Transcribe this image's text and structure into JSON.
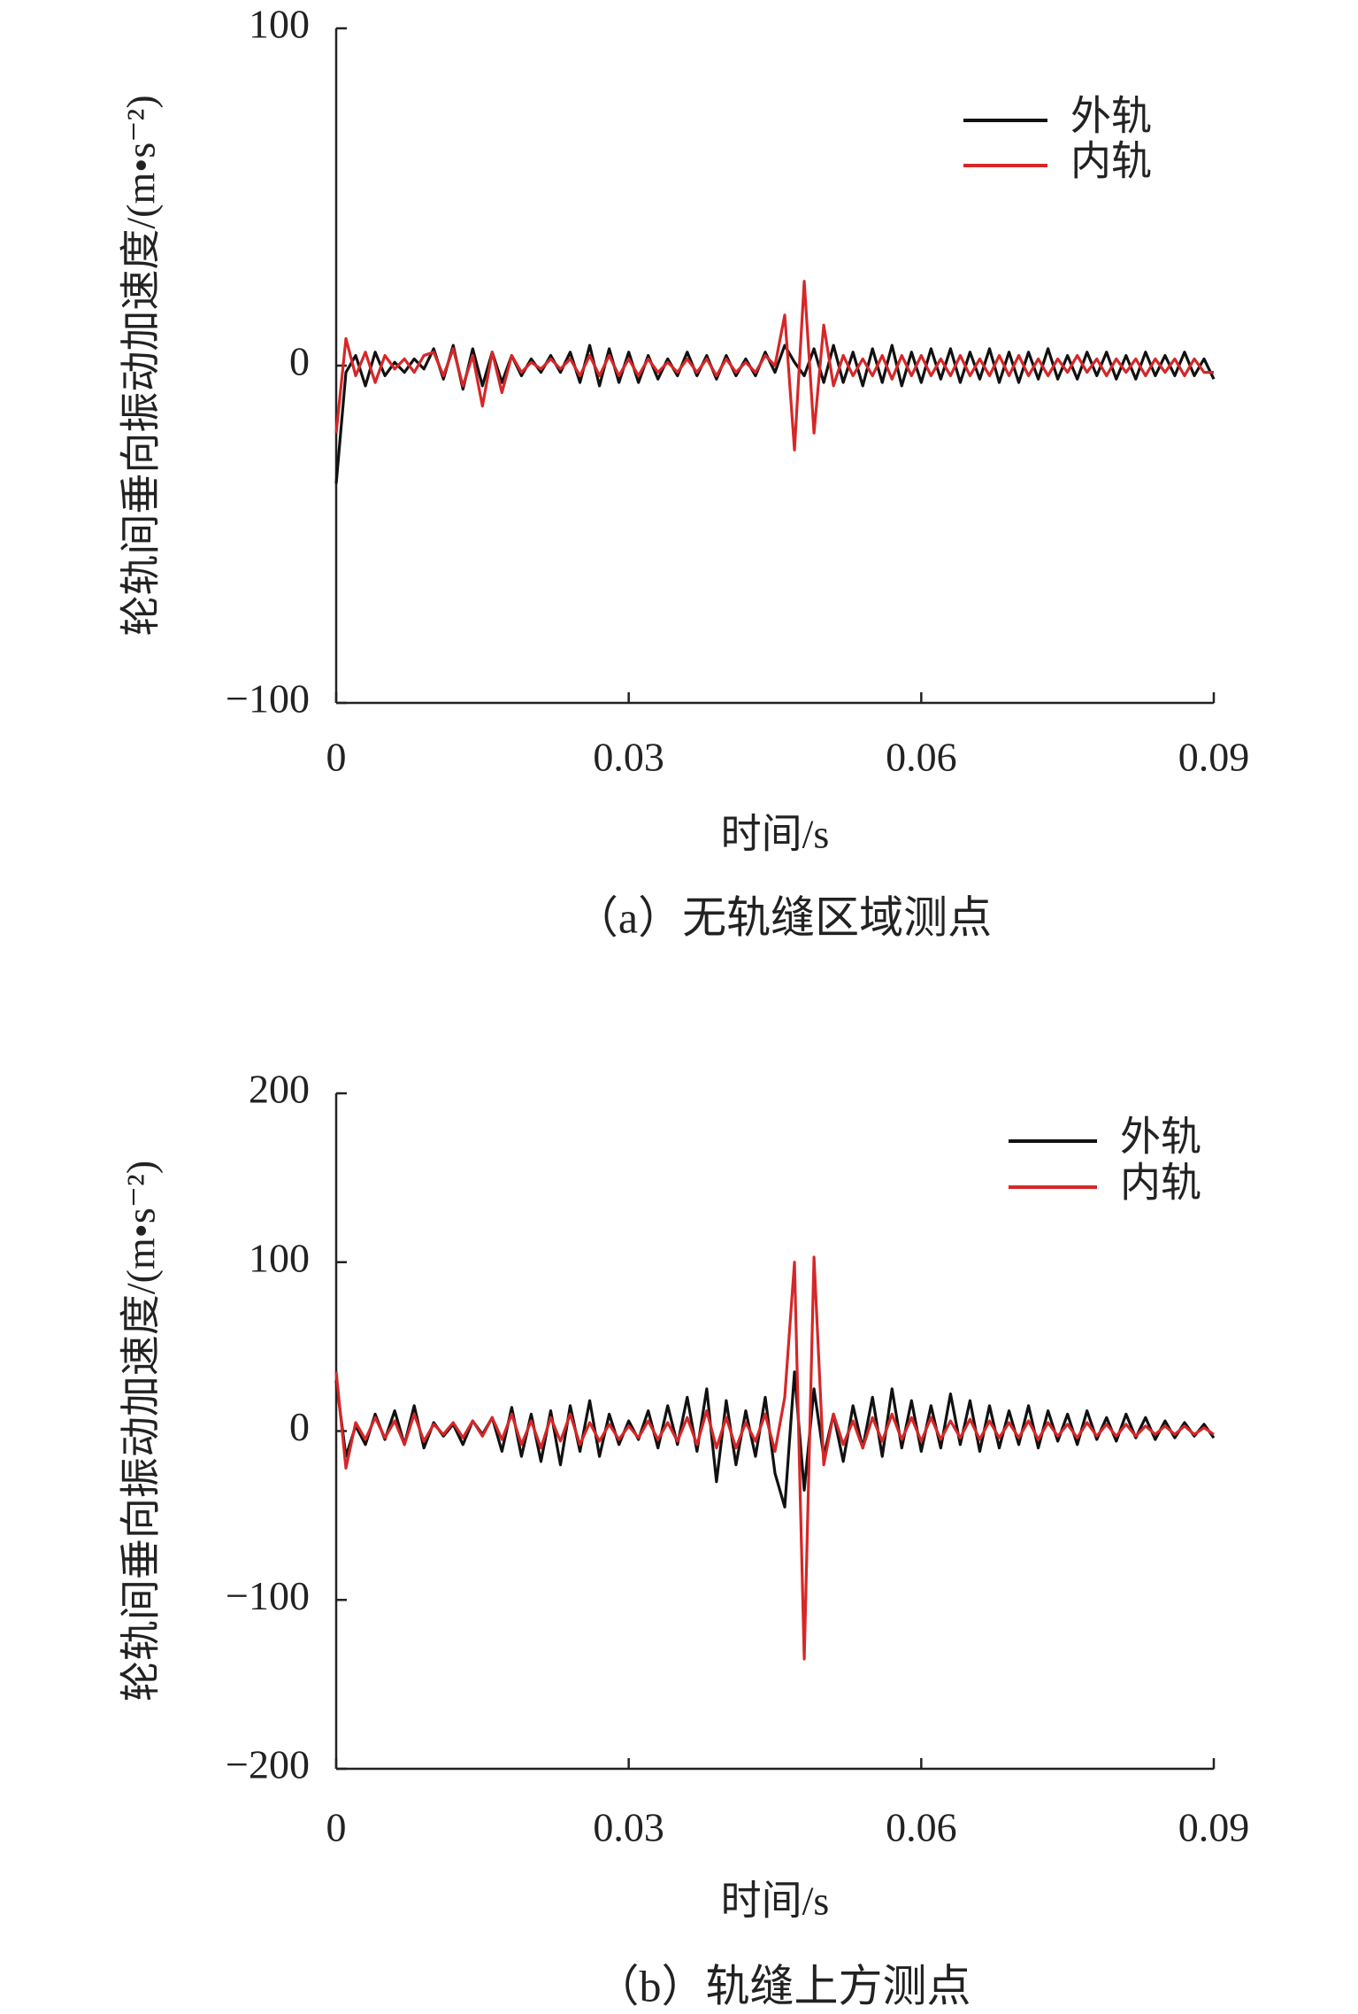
{
  "chart_data": [
    {
      "type": "line",
      "ylabel": "轮轨间垂向振动加速度/(m•s⁻²)",
      "xlabel": "时间/s",
      "caption": "（a）无轨缝区域测点",
      "xlim": [
        0,
        0.09
      ],
      "xticks": [
        0,
        0.03,
        0.06,
        0.09
      ],
      "ylim": [
        -100,
        100
      ],
      "yticks": [
        {
          "value": -100,
          "label": "−100"
        },
        0,
        100
      ],
      "legend": "upper right",
      "grid": false,
      "x": [
        0,
        0.001,
        0.002,
        0.003,
        0.004,
        0.005,
        0.006,
        0.007,
        0.008,
        0.009,
        0.01,
        0.011,
        0.012,
        0.013,
        0.014,
        0.015,
        0.016,
        0.017,
        0.018,
        0.019,
        0.02,
        0.021,
        0.022,
        0.023,
        0.024,
        0.025,
        0.026,
        0.027,
        0.028,
        0.029,
        0.03,
        0.031,
        0.032,
        0.033,
        0.034,
        0.035,
        0.036,
        0.037,
        0.038,
        0.039,
        0.04,
        0.041,
        0.042,
        0.043,
        0.044,
        0.045,
        0.046,
        0.047,
        0.048,
        0.049,
        0.05,
        0.051,
        0.052,
        0.053,
        0.054,
        0.055,
        0.056,
        0.057,
        0.058,
        0.059,
        0.06,
        0.061,
        0.062,
        0.063,
        0.064,
        0.065,
        0.066,
        0.067,
        0.068,
        0.069,
        0.07,
        0.071,
        0.072,
        0.073,
        0.074,
        0.075,
        0.076,
        0.077,
        0.078,
        0.079,
        0.08,
        0.081,
        0.082,
        0.083,
        0.084,
        0.085,
        0.086,
        0.087,
        0.088,
        0.089,
        0.09
      ],
      "series": [
        {
          "name": "外轨",
          "color": "#111111",
          "values": [
            -35,
            -2,
            3,
            -6,
            4,
            -3,
            1,
            -2,
            2,
            -1,
            5,
            -4,
            6,
            -7,
            5,
            -6,
            4,
            -5,
            3,
            -3,
            2,
            -2,
            3,
            -2,
            4,
            -5,
            6,
            -6,
            5,
            -5,
            4,
            -5,
            3,
            -4,
            2,
            -3,
            4,
            -3,
            3,
            -4,
            3,
            -3,
            2,
            -3,
            4,
            -2,
            6,
            1,
            -3,
            5,
            -5,
            6,
            -5,
            4,
            -6,
            5,
            -5,
            6,
            -6,
            4,
            -5,
            5,
            -4,
            5,
            -5,
            4,
            -4,
            5,
            -5,
            4,
            -5,
            4,
            -4,
            5,
            -4,
            3,
            -4,
            4,
            -3,
            4,
            -4,
            3,
            -4,
            4,
            -3,
            3,
            -3,
            4,
            -3,
            2,
            -4
          ]
        },
        {
          "name": "内轨",
          "color": "#d62728",
          "values": [
            -20,
            8,
            -3,
            4,
            -5,
            3,
            -1,
            2,
            -2,
            3,
            4,
            -3,
            5,
            -6,
            3,
            -12,
            4,
            -8,
            3,
            -2,
            1,
            -1,
            2,
            -1,
            2,
            -3,
            3,
            -3,
            3,
            -3,
            2,
            -3,
            2,
            -2,
            1,
            -2,
            2,
            -2,
            2,
            -3,
            2,
            -2,
            1,
            -2,
            3,
            0,
            15,
            -25,
            25,
            -20,
            12,
            -6,
            3,
            -3,
            2,
            -3,
            3,
            -4,
            3,
            -3,
            3,
            -3,
            2,
            -3,
            3,
            -3,
            2,
            -3,
            3,
            -3,
            3,
            -3,
            2,
            -3,
            2,
            -2,
            3,
            -2,
            2,
            -3,
            2,
            -2,
            2,
            -3,
            2,
            -2,
            2,
            -3,
            2,
            -2,
            -2
          ]
        }
      ]
    },
    {
      "type": "line",
      "ylabel": "轮轨间垂向振动加速度/(m•s⁻²)",
      "xlabel": "时间/s",
      "caption": "（b）轨缝上方测点",
      "xlim": [
        0,
        0.09
      ],
      "xticks": [
        0,
        0.03,
        0.06,
        0.09
      ],
      "ylim": [
        -200,
        200
      ],
      "yticks": [
        {
          "value": -200,
          "label": "−200"
        },
        {
          "value": -100,
          "label": "−100"
        },
        0,
        100,
        200
      ],
      "legend": "upper right",
      "grid": false,
      "x": [
        0,
        0.001,
        0.002,
        0.003,
        0.004,
        0.005,
        0.006,
        0.007,
        0.008,
        0.009,
        0.01,
        0.011,
        0.012,
        0.013,
        0.014,
        0.015,
        0.016,
        0.017,
        0.018,
        0.019,
        0.02,
        0.021,
        0.022,
        0.023,
        0.024,
        0.025,
        0.026,
        0.027,
        0.028,
        0.029,
        0.03,
        0.031,
        0.032,
        0.033,
        0.034,
        0.035,
        0.036,
        0.037,
        0.038,
        0.039,
        0.04,
        0.041,
        0.042,
        0.043,
        0.044,
        0.045,
        0.046,
        0.047,
        0.048,
        0.049,
        0.05,
        0.051,
        0.052,
        0.053,
        0.054,
        0.055,
        0.056,
        0.057,
        0.058,
        0.059,
        0.06,
        0.061,
        0.062,
        0.063,
        0.064,
        0.065,
        0.066,
        0.067,
        0.068,
        0.069,
        0.07,
        0.071,
        0.072,
        0.073,
        0.074,
        0.075,
        0.076,
        0.077,
        0.078,
        0.079,
        0.08,
        0.081,
        0.082,
        0.083,
        0.084,
        0.085,
        0.086,
        0.087,
        0.088,
        0.089,
        0.09
      ],
      "series": [
        {
          "name": "外轨",
          "color": "#111111",
          "values": [
            30,
            -15,
            3,
            -8,
            10,
            -5,
            12,
            -8,
            15,
            -10,
            5,
            -3,
            4,
            -8,
            6,
            -2,
            8,
            -12,
            14,
            -15,
            10,
            -18,
            12,
            -20,
            15,
            -12,
            18,
            -15,
            10,
            -8,
            6,
            -5,
            12,
            -10,
            15,
            -8,
            20,
            -12,
            25,
            -30,
            18,
            -20,
            12,
            -15,
            20,
            -25,
            -45,
            35,
            -35,
            25,
            -15,
            10,
            -18,
            15,
            -10,
            20,
            -15,
            25,
            -10,
            18,
            -12,
            15,
            -10,
            22,
            -8,
            18,
            -12,
            15,
            -10,
            12,
            -8,
            15,
            -10,
            12,
            -6,
            10,
            -8,
            12,
            -5,
            8,
            -6,
            10,
            -4,
            8,
            -5,
            6,
            -4,
            5,
            -3,
            4,
            -4
          ]
        },
        {
          "name": "内轨",
          "color": "#d62728",
          "values": [
            35,
            -22,
            5,
            -5,
            8,
            -4,
            6,
            -8,
            10,
            -6,
            4,
            -2,
            5,
            -4,
            6,
            -3,
            8,
            -5,
            10,
            -8,
            6,
            -10,
            8,
            -6,
            10,
            -8,
            5,
            -6,
            4,
            -5,
            3,
            -4,
            6,
            -5,
            5,
            -6,
            8,
            -8,
            12,
            -10,
            8,
            -10,
            5,
            -6,
            10,
            -12,
            20,
            100,
            -135,
            103,
            -20,
            10,
            -8,
            6,
            -10,
            8,
            -6,
            10,
            -5,
            8,
            -6,
            8,
            -5,
            6,
            -4,
            7,
            -5,
            6,
            -4,
            5,
            -4,
            6,
            -5,
            5,
            -3,
            4,
            -4,
            5,
            -3,
            4,
            -3,
            4,
            -3,
            3,
            -2,
            3,
            -2,
            3,
            -2,
            2,
            -2
          ]
        }
      ]
    }
  ]
}
